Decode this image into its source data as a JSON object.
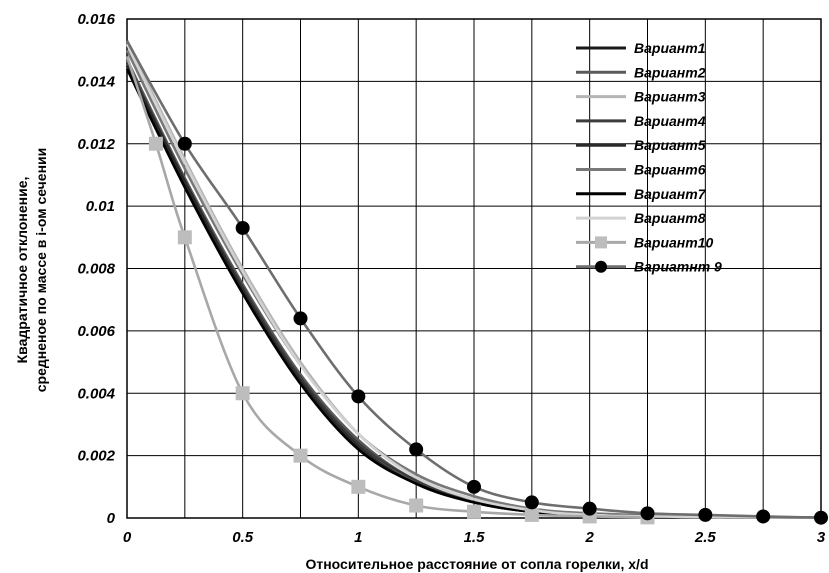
{
  "chart_data": {
    "type": "line",
    "title": "",
    "xlabel": "Относительное расстояние от сопла горелки, x/d",
    "ylabel_lines": [
      "Квадратичное отклонение,",
      "средненое по массе в i-ом сечении"
    ],
    "xlim": [
      0,
      3
    ],
    "ylim": [
      0,
      0.016
    ],
    "x_ticks": [
      0,
      0.5,
      1,
      1.5,
      2,
      2.5,
      3
    ],
    "x_tick_labels": [
      "0",
      "0.5",
      "1",
      "1.5",
      "2",
      "2.5",
      "3"
    ],
    "x_minor_step": 0.25,
    "y_ticks": [
      0,
      0.002,
      0.004,
      0.006,
      0.008,
      0.01,
      0.012,
      0.014,
      0.016
    ],
    "y_tick_labels": [
      "0",
      "0.002",
      "0.004",
      "0.006",
      "0.008",
      "0.01",
      "0.012",
      "0.014",
      "0.016"
    ],
    "grid": true,
    "legend_position": "top-right",
    "series": [
      {
        "name": "Вариант1",
        "color": "#1a1a1a",
        "marker": "none",
        "x": [
          0,
          0.25,
          0.5,
          0.75,
          1,
          1.25,
          1.5,
          1.75,
          2,
          2.5,
          3
        ],
        "y": [
          0.0145,
          0.0107,
          0.0073,
          0.0044,
          0.0023,
          0.0011,
          0.0005,
          0.0002,
          0.0001,
          3e-05,
          1e-05
        ]
      },
      {
        "name": "Вариант2",
        "color": "#5a5a5a",
        "marker": "none",
        "x": [
          0,
          0.25,
          0.5,
          0.75,
          1,
          1.25,
          1.5,
          1.75,
          2,
          2.5,
          3
        ],
        "y": [
          0.0147,
          0.0109,
          0.0075,
          0.0046,
          0.0025,
          0.0012,
          0.0006,
          0.00025,
          0.0001,
          3e-05,
          1e-05
        ]
      },
      {
        "name": "Вариант3",
        "color": "#b4b4b4",
        "marker": "none",
        "x": [
          0,
          0.25,
          0.5,
          0.75,
          1,
          1.25,
          1.5,
          1.75,
          2,
          2.5,
          3
        ],
        "y": [
          0.0153,
          0.0115,
          0.008,
          0.005,
          0.0027,
          0.0013,
          0.0006,
          0.00025,
          0.0001,
          3e-05,
          1e-05
        ]
      },
      {
        "name": "Вариант4",
        "color": "#3c3c3c",
        "marker": "none",
        "x": [
          0,
          0.25,
          0.5,
          0.75,
          1,
          1.25,
          1.5,
          1.75,
          2,
          2.5,
          3
        ],
        "y": [
          0.0146,
          0.0108,
          0.0074,
          0.0045,
          0.0024,
          0.0012,
          0.0005,
          0.0002,
          0.0001,
          3e-05,
          1e-05
        ]
      },
      {
        "name": "Вариант5",
        "color": "#2a2a2a",
        "marker": "none",
        "x": [
          0,
          0.25,
          0.5,
          0.75,
          1,
          1.25,
          1.5,
          1.75,
          2,
          2.5,
          3
        ],
        "y": [
          0.0145,
          0.0108,
          0.0073,
          0.0044,
          0.0023,
          0.0011,
          0.0005,
          0.0002,
          0.0001,
          3e-05,
          1e-05
        ]
      },
      {
        "name": "Вариант6",
        "color": "#787878",
        "marker": "none",
        "x": [
          0,
          0.25,
          0.5,
          0.75,
          1,
          1.25,
          1.5,
          1.75,
          2,
          2.5,
          3
        ],
        "y": [
          0.015,
          0.0112,
          0.0078,
          0.0049,
          0.0027,
          0.0014,
          0.0007,
          0.0003,
          0.00015,
          5e-05,
          1e-05
        ]
      },
      {
        "name": "Вариант7",
        "color": "#000000",
        "marker": "none",
        "x": [
          0,
          0.25,
          0.5,
          0.75,
          1,
          1.25,
          1.5,
          1.75,
          2,
          2.5,
          3
        ],
        "y": [
          0.0144,
          0.0106,
          0.0072,
          0.0043,
          0.0022,
          0.0011,
          0.0005,
          0.0002,
          0.0001,
          3e-05,
          1e-05
        ]
      },
      {
        "name": "Вариант8",
        "color": "#d2d2d2",
        "marker": "none",
        "x": [
          0,
          0.25,
          0.5,
          0.75,
          1,
          1.25,
          1.5,
          1.75,
          2,
          2.5,
          3
        ],
        "y": [
          0.0152,
          0.0114,
          0.0079,
          0.0049,
          0.0027,
          0.0013,
          0.0006,
          0.00025,
          0.0001,
          3e-05,
          1e-05
        ]
      },
      {
        "name": "Вариант10",
        "color": "#a8a8a8",
        "marker": "square",
        "x": [
          0,
          0.125,
          0.25,
          0.5,
          0.75,
          1,
          1.25,
          1.5,
          1.75,
          2,
          2.25
        ],
        "y": [
          0.0148,
          0.012,
          0.009,
          0.004,
          0.002,
          0.001,
          0.0004,
          0.0002,
          0.0001,
          5e-05,
          2e-05
        ]
      },
      {
        "name": "Вариатнт 9",
        "color": "#6e6e6e",
        "marker": "circle",
        "x": [
          0,
          0.25,
          0.5,
          0.75,
          1,
          1.25,
          1.5,
          1.75,
          2,
          2.25,
          2.5,
          2.75,
          3
        ],
        "y": [
          0.0153,
          0.012,
          0.0093,
          0.0064,
          0.0039,
          0.0022,
          0.001,
          0.0005,
          0.0003,
          0.00015,
          0.0001,
          5e-05,
          1e-05
        ]
      }
    ]
  }
}
